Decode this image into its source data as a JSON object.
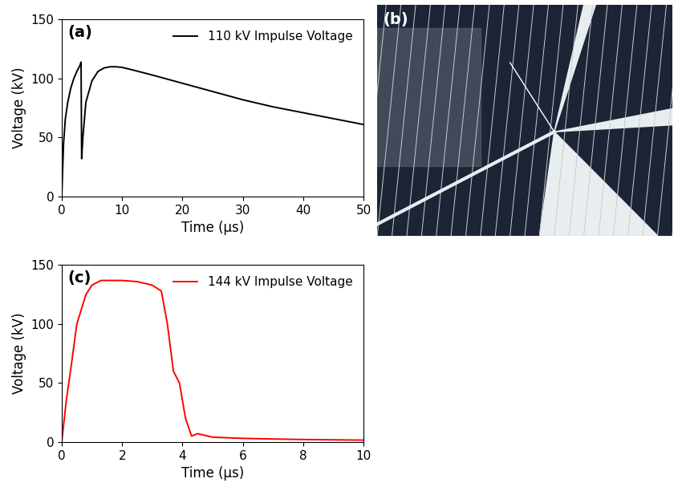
{
  "chart_data": [
    {
      "type": "line",
      "title": "(a)",
      "x_label": "Time (μs)",
      "y_label": "Voltage (kV)",
      "xlim": [
        0,
        50
      ],
      "xticks": [
        0,
        10,
        20,
        30,
        40,
        50
      ],
      "ylim": [
        0,
        150
      ],
      "yticks": [
        0,
        50,
        100,
        150
      ],
      "legend": "upper right",
      "series": [
        {
          "name": "110 kV Impulse Voltage",
          "color": "#000000",
          "x": [
            0,
            0.3,
            0.6,
            1,
            1.5,
            2,
            2.5,
            3,
            3.2,
            3.3,
            3.5,
            4,
            5,
            6,
            7,
            8,
            9,
            10,
            12,
            15,
            20,
            25,
            30,
            35,
            40,
            45,
            50
          ],
          "values": [
            0,
            45,
            66,
            80,
            92,
            100,
            106,
            111,
            114,
            32,
            50,
            80,
            98,
            106,
            109,
            110,
            110,
            109.5,
            107,
            103,
            96,
            89,
            82,
            76,
            71,
            66,
            61
          ]
        }
      ]
    },
    {
      "type": "image",
      "title": "(b)"
    },
    {
      "type": "line",
      "title": "(c)",
      "x_label": "Time (μs)",
      "y_label": "Voltage (kV)",
      "xlim": [
        0,
        10
      ],
      "xticks": [
        0,
        2,
        4,
        6,
        8,
        10
      ],
      "ylim": [
        0,
        150
      ],
      "yticks": [
        0,
        50,
        100,
        150
      ],
      "legend": "upper right",
      "series": [
        {
          "name": "144 kV Impulse Voltage",
          "color": "#ff0000",
          "x": [
            0,
            0.15,
            0.3,
            0.5,
            0.8,
            1,
            1.3,
            2,
            2.5,
            3,
            3.3,
            3.5,
            3.7,
            3.9,
            4.1,
            4.3,
            4.5,
            5,
            6,
            8,
            10
          ],
          "values": [
            0,
            35,
            62,
            100,
            125,
            133,
            137,
            137,
            136,
            133,
            128,
            100,
            60,
            50,
            20,
            5,
            7,
            4,
            3,
            2,
            1.5
          ]
        }
      ]
    }
  ]
}
